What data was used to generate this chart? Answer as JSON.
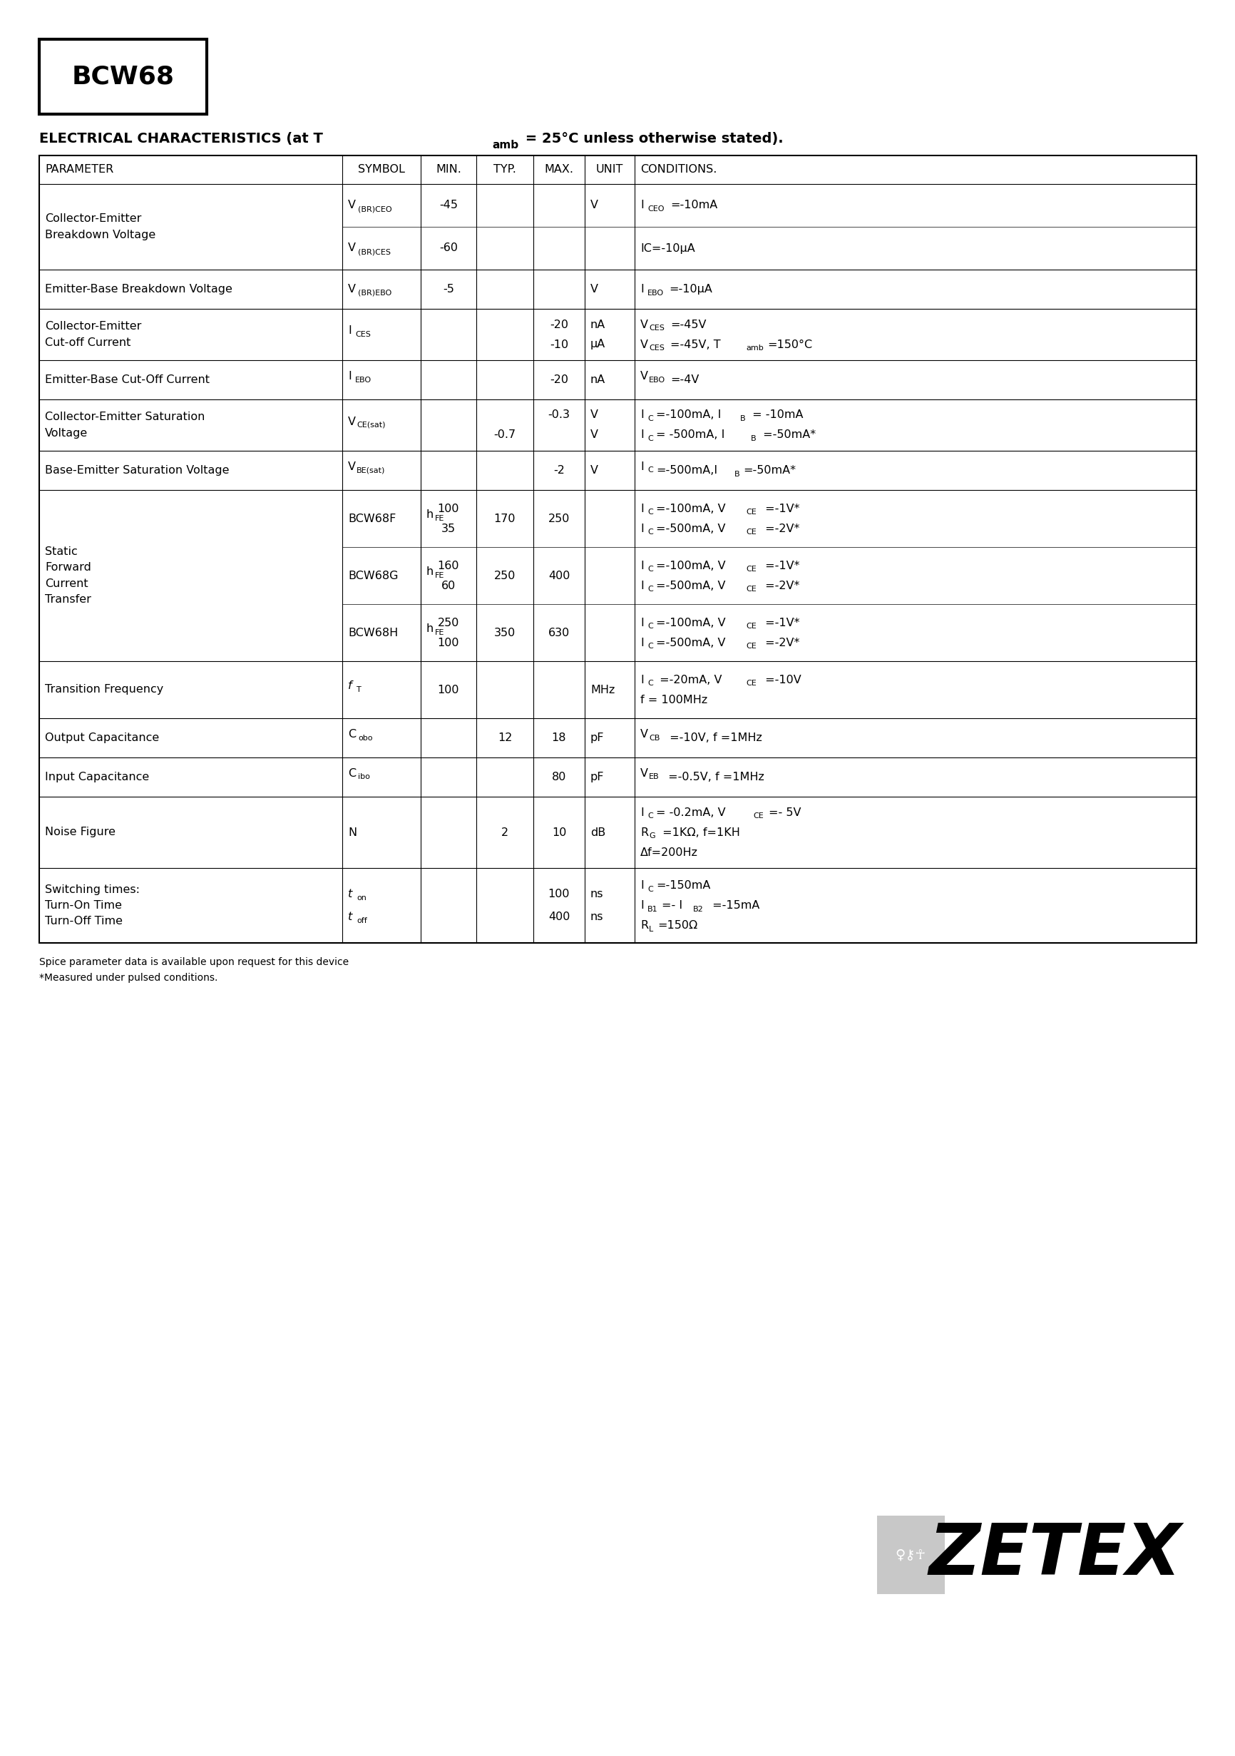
{
  "title": "BCW68",
  "footer_line1": "Spice parameter data is available upon request for this device",
  "footer_line2": "*Measured under pulsed conditions.",
  "bg_color": "#ffffff"
}
